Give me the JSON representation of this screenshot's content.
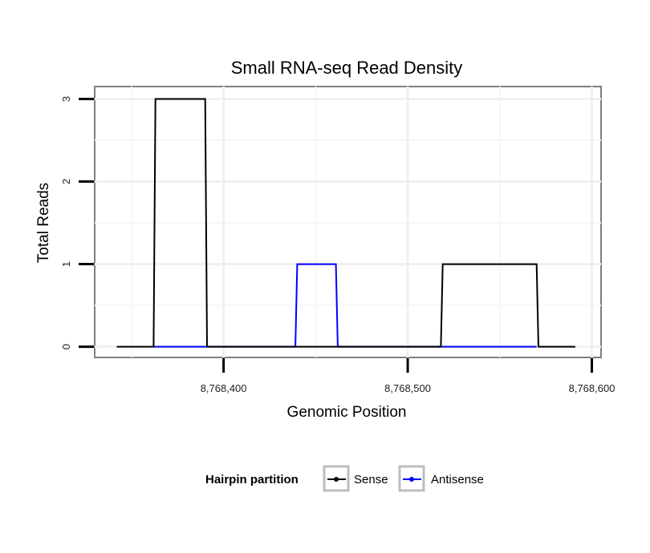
{
  "chart_data": {
    "type": "line",
    "title": "Small RNA-seq Read Density",
    "xlabel": "Genomic Position",
    "ylabel": "Total Reads",
    "xlim": [
      8768330,
      8768605
    ],
    "ylim": [
      -0.13,
      3.15
    ],
    "xticks": [
      8768400,
      8768500,
      8768600
    ],
    "xtick_labels": [
      "8,768,400",
      "8,768,500",
      "8,768,600"
    ],
    "yticks": [
      0,
      1,
      2,
      3
    ],
    "ytick_labels": [
      "0",
      "1",
      "2",
      "3"
    ],
    "grid": true,
    "legend": {
      "title": "Hairpin partition",
      "position": "bottom",
      "entries": [
        "Sense",
        "Antisense"
      ]
    },
    "series": [
      {
        "name": "Sense",
        "color": "#000000",
        "x": [
          8768342,
          8768362,
          8768363,
          8768390,
          8768391,
          8768518,
          8768519,
          8768570,
          8768571,
          8768591
        ],
        "y": [
          0,
          0,
          3,
          3,
          0,
          0,
          1,
          1,
          0,
          0
        ]
      },
      {
        "name": "Antisense",
        "color": "#0000ff",
        "x": [
          8768362,
          8768439,
          8768440,
          8768461,
          8768462,
          8768570
        ],
        "y": [
          0,
          0,
          1,
          1,
          0,
          0
        ]
      }
    ]
  }
}
